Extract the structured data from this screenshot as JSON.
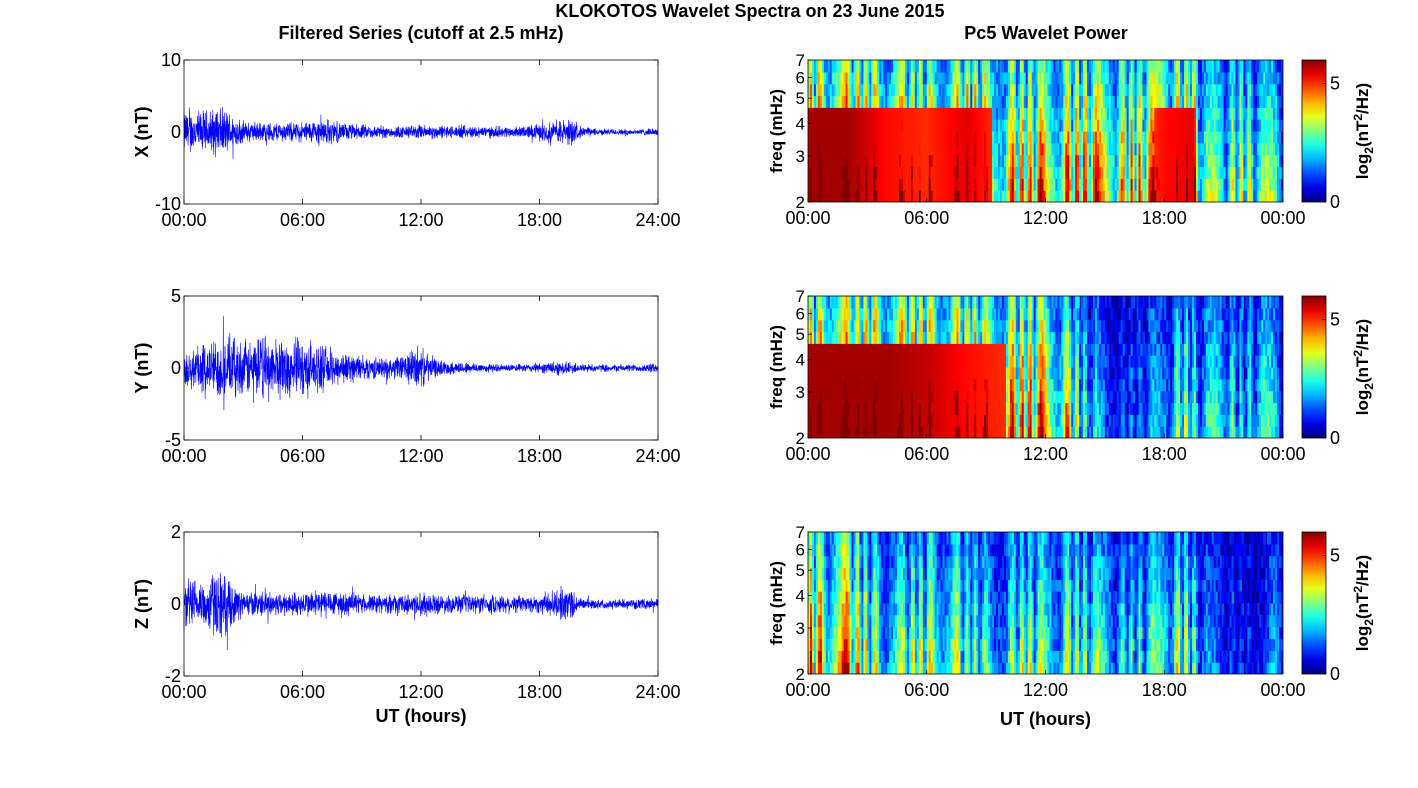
{
  "figure": {
    "title": "KLOKOTOS Wavelet Spectra on 23 June 2015",
    "left_column_title": "Filtered Series (cutoff at 2.5 mHz)",
    "right_column_title": "Pc5 Wavelet Power",
    "xlabel": "UT (hours)",
    "freq_label": "freq (mHz)",
    "colorbar_label_base": "log",
    "colorbar_label_sub": "2",
    "colorbar_label_open": "(nT",
    "colorbar_label_sup": "2",
    "colorbar_label_close": "/Hz)",
    "trace_color": "#0000ff",
    "colormap": "jet"
  },
  "chart_data": [
    {
      "type": "line",
      "name": "series-x",
      "ylabel": "X (nT)",
      "ylim": [
        -10,
        10
      ],
      "yticks": [
        "10",
        "0",
        "-10"
      ],
      "xlim_hours": [
        0,
        24
      ],
      "xticks": [
        "00:00",
        "06:00",
        "12:00",
        "18:00",
        "24:00"
      ],
      "x_show_label": false,
      "activity_envelope": {
        "hours": [
          0,
          1,
          1.8,
          2.2,
          3,
          4,
          5,
          6,
          7,
          7.5,
          8,
          9,
          10,
          11,
          12,
          13,
          14,
          15,
          16,
          17,
          18,
          19,
          19.6,
          20,
          21,
          22,
          23,
          24
        ],
        "amplitude_nT": [
          3.5,
          3.5,
          4.0,
          3.5,
          1.8,
          1.6,
          1.6,
          1.6,
          2.2,
          2.0,
          1.5,
          1.2,
          1.0,
          1.0,
          1.2,
          1.1,
          1.0,
          1.0,
          0.9,
          0.9,
          1.4,
          2.0,
          2.3,
          1.0,
          0.5,
          0.5,
          0.5,
          0.6
        ]
      }
    },
    {
      "type": "heatmap",
      "name": "power-x",
      "ylabel": "freq (mHz)",
      "ylim_mHz": [
        2,
        7
      ],
      "yscale": "log",
      "yticks": [
        "2",
        "3",
        "4",
        "5",
        "6",
        "7"
      ],
      "xticks": [
        "00:00",
        "06:00",
        "12:00",
        "18:00",
        "00:00"
      ],
      "clim": [
        0,
        6
      ],
      "cticks": [
        "0",
        "5"
      ],
      "x_show_label": false,
      "power_envelope": {
        "hours": [
          0,
          2,
          4,
          6,
          8,
          10,
          12,
          14,
          16,
          18,
          19.5,
          20,
          21,
          22,
          23,
          24
        ],
        "level": [
          5.8,
          5.8,
          5.2,
          5.0,
          5.4,
          4.8,
          4.8,
          5.0,
          4.4,
          5.2,
          5.4,
          2.8,
          3.2,
          3.6,
          3.0,
          2.8
        ]
      }
    },
    {
      "type": "line",
      "name": "series-y",
      "ylabel": "Y (nT)",
      "ylim": [
        -5,
        5
      ],
      "yticks": [
        "5",
        "0",
        "-5"
      ],
      "xlim_hours": [
        0,
        24
      ],
      "xticks": [
        "00:00",
        "06:00",
        "12:00",
        "18:00",
        "24:00"
      ],
      "x_show_label": false,
      "activity_envelope": {
        "hours": [
          0,
          1,
          2,
          3,
          4,
          5,
          6,
          7,
          8,
          9,
          10,
          11,
          11.8,
          12.5,
          13,
          14,
          15,
          16,
          17,
          18,
          19,
          20,
          21,
          22,
          23,
          24
        ],
        "amplitude_nT": [
          1.8,
          2.0,
          2.6,
          2.2,
          2.6,
          2.4,
          2.4,
          1.8,
          1.3,
          1.0,
          0.8,
          1.0,
          1.8,
          1.0,
          0.6,
          0.5,
          0.4,
          0.3,
          0.3,
          0.4,
          0.6,
          0.4,
          0.3,
          0.3,
          0.3,
          0.4
        ]
      }
    },
    {
      "type": "heatmap",
      "name": "power-y",
      "ylabel": "freq (mHz)",
      "ylim_mHz": [
        2,
        7
      ],
      "yscale": "log",
      "yticks": [
        "2",
        "3",
        "4",
        "5",
        "6",
        "7"
      ],
      "xticks": [
        "00:00",
        "06:00",
        "12:00",
        "18:00",
        "00:00"
      ],
      "clim": [
        0,
        6
      ],
      "cticks": [
        "0",
        "5"
      ],
      "x_show_label": false,
      "power_envelope": {
        "hours": [
          0,
          2,
          4,
          6,
          8,
          10,
          12,
          13,
          14,
          15,
          16,
          17,
          18,
          19,
          20,
          21,
          22,
          23,
          24
        ],
        "level": [
          5.8,
          5.8,
          5.8,
          5.6,
          5.2,
          5.0,
          5.0,
          4.4,
          2.6,
          1.6,
          1.2,
          1.6,
          2.0,
          3.4,
          2.0,
          2.8,
          2.2,
          2.6,
          1.8
        ]
      }
    },
    {
      "type": "line",
      "name": "series-z",
      "ylabel": "Z (nT)",
      "ylim": [
        -2,
        2
      ],
      "yticks": [
        "2",
        "0",
        "-2"
      ],
      "xlim_hours": [
        0,
        24
      ],
      "xticks": [
        "00:00",
        "06:00",
        "12:00",
        "18:00",
        "24:00"
      ],
      "x_show_label": true,
      "activity_envelope": {
        "hours": [
          0,
          1,
          1.8,
          2.2,
          3,
          4,
          5,
          6,
          7,
          8,
          9,
          10,
          11,
          12,
          13,
          14,
          15,
          16,
          17,
          18,
          19,
          19.6,
          20,
          21,
          22,
          23,
          24
        ],
        "amplitude_nT": [
          0.8,
          0.8,
          1.2,
          0.8,
          0.4,
          0.4,
          0.4,
          0.4,
          0.5,
          0.4,
          0.3,
          0.3,
          0.3,
          0.4,
          0.3,
          0.3,
          0.3,
          0.3,
          0.3,
          0.3,
          0.5,
          0.6,
          0.2,
          0.15,
          0.15,
          0.15,
          0.2
        ]
      }
    },
    {
      "type": "heatmap",
      "name": "power-z",
      "ylabel": "freq (mHz)",
      "ylim_mHz": [
        2,
        7
      ],
      "yscale": "log",
      "yticks": [
        "2",
        "3",
        "4",
        "5",
        "6",
        "7"
      ],
      "xticks": [
        "00:00",
        "06:00",
        "12:00",
        "18:00",
        "00:00"
      ],
      "clim": [
        0,
        6
      ],
      "cticks": [
        "0",
        "5"
      ],
      "x_show_label": true,
      "power_envelope": {
        "hours": [
          0,
          1,
          2,
          3,
          4,
          5,
          6,
          7,
          8,
          9,
          10,
          11,
          12,
          13,
          14,
          15,
          16,
          17,
          18,
          19,
          20,
          21,
          22,
          23,
          24
        ],
        "level": [
          5.0,
          4.8,
          5.0,
          3.6,
          3.2,
          3.2,
          3.6,
          4.0,
          3.0,
          2.6,
          2.6,
          3.4,
          3.2,
          3.4,
          3.0,
          2.8,
          2.4,
          2.6,
          3.0,
          3.6,
          1.6,
          1.2,
          1.0,
          0.8,
          2.4
        ]
      }
    }
  ]
}
